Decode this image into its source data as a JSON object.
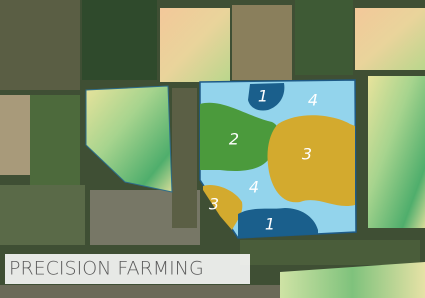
{
  "zones": [
    {
      "label": "1"
    },
    {
      "label": "4"
    },
    {
      "label": "2"
    },
    {
      "label": "3"
    },
    {
      "label": "4"
    },
    {
      "label": "3"
    },
    {
      "label": "1"
    }
  ],
  "caption": "PRECISION FARMING"
}
